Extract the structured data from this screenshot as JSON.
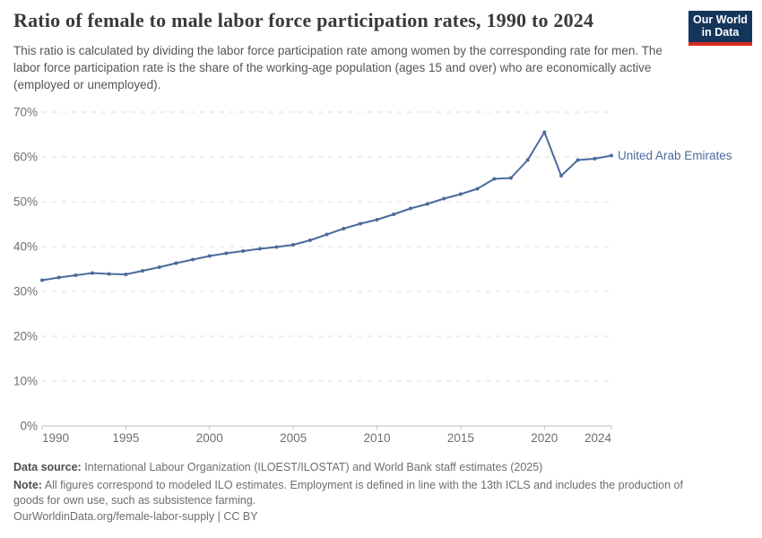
{
  "header": {
    "title": "Ratio of female to male labor force participation rates, 1990 to 2024",
    "subtitle": "This ratio is calculated by dividing the labor force participation rate among women by the corresponding rate for men. The labor force participation rate is the share of the working-age population (ages 15 and over) who are economically active (employed or unemployed).",
    "logo": {
      "line1": "Our World",
      "line2": "in Data"
    }
  },
  "colors": {
    "series_blue": "#4c6a9c",
    "logo_navy": "#14355c",
    "logo_red": "#d7291e",
    "grid": "#dcdcdc",
    "axis": "#bdbdbd",
    "tick_label": "#6f6f6f",
    "title_text": "#3a3a3a",
    "subtitle_text": "#555555",
    "footer_text": "#6e6e6e"
  },
  "chart_data": {
    "type": "line",
    "title": "Ratio of female to male labor force participation rates, 1990 to 2024",
    "xlabel": "",
    "ylabel": "",
    "x": [
      1990,
      1991,
      1992,
      1993,
      1994,
      1995,
      1996,
      1997,
      1998,
      1999,
      2000,
      2001,
      2002,
      2003,
      2004,
      2005,
      2006,
      2007,
      2008,
      2009,
      2010,
      2011,
      2012,
      2013,
      2014,
      2015,
      2016,
      2017,
      2018,
      2019,
      2020,
      2021,
      2022,
      2023,
      2024
    ],
    "series": [
      {
        "name": "United Arab Emirates",
        "color": "#4c6a9c",
        "values": [
          32.5,
          33.1,
          33.6,
          34.1,
          33.9,
          33.8,
          34.6,
          35.4,
          36.3,
          37.1,
          37.9,
          38.5,
          39.0,
          39.5,
          39.9,
          40.4,
          41.4,
          42.7,
          44.0,
          45.1,
          46.0,
          47.2,
          48.5,
          49.5,
          50.7,
          51.7,
          52.9,
          55.1,
          55.3,
          59.3,
          65.5,
          55.8,
          59.3,
          59.6,
          60.3
        ]
      }
    ],
    "xlim": [
      1990,
      2024
    ],
    "ylim": [
      0,
      70
    ],
    "y_ticks": [
      0,
      10,
      20,
      30,
      40,
      50,
      60,
      70
    ],
    "y_tick_suffix": "%",
    "x_ticks": [
      1990,
      1995,
      2000,
      2005,
      2010,
      2015,
      2020,
      2024
    ],
    "grid": "horizontal-dashed",
    "legend": "end-of-line-label"
  },
  "footer": {
    "data_source_label": "Data source:",
    "data_source_text": " International Labour Organization (ILOEST/ILOSTAT) and World Bank staff estimates (2025)",
    "note_label": "Note:",
    "note_text": " All figures correspond to modeled ILO estimates. Employment is defined in line with the 13th ICLS and includes the production of goods for own use, such as subsistence farming.",
    "license_line": "OurWorldinData.org/female-labor-supply | CC BY"
  }
}
